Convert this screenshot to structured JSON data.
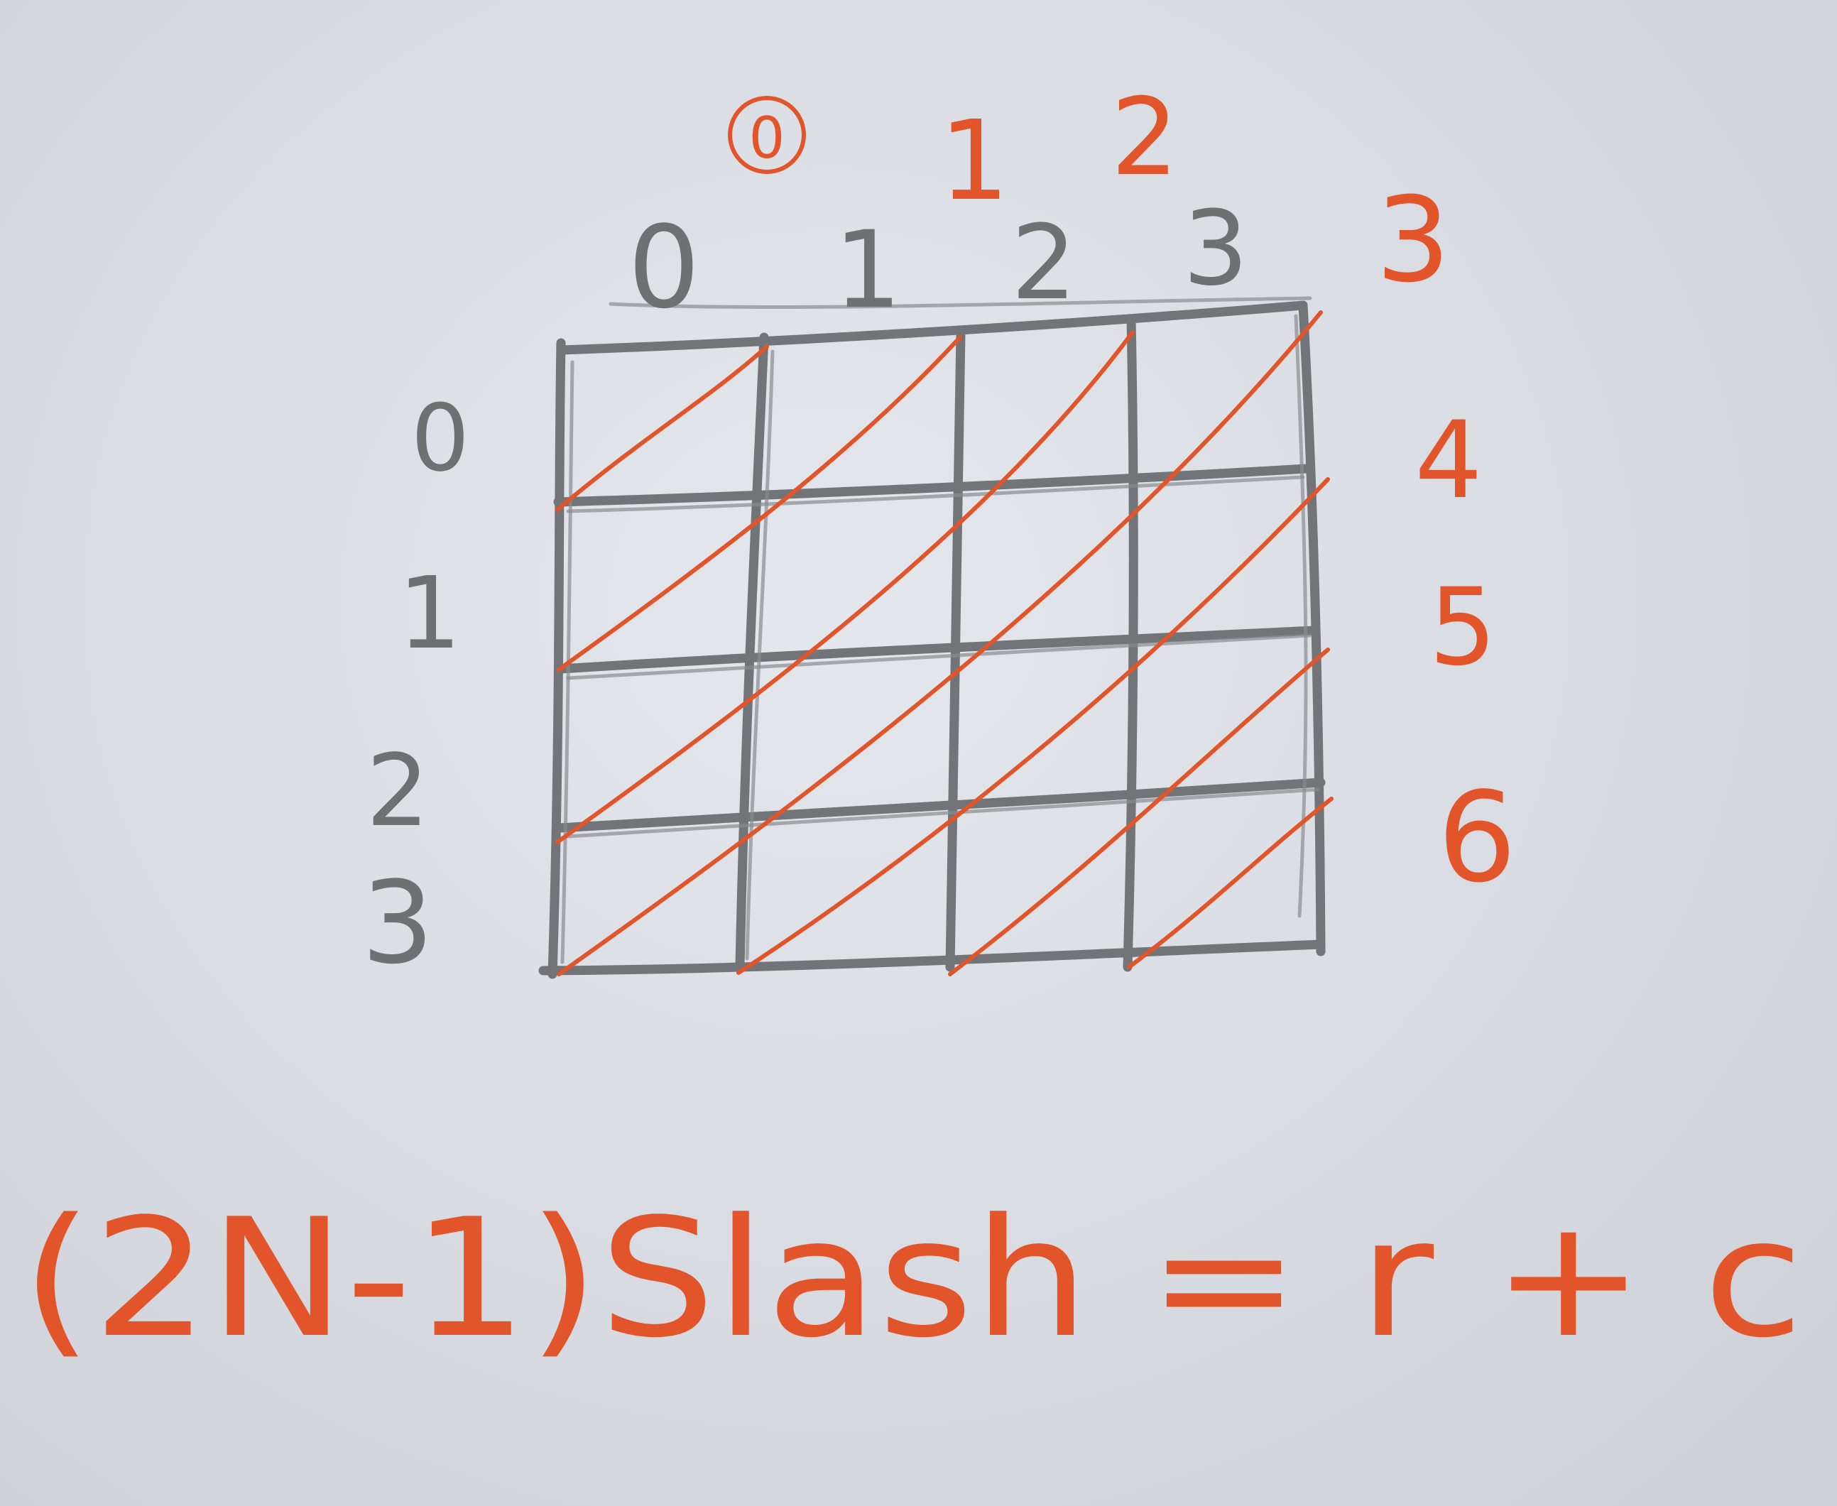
{
  "grid": {
    "rows": 4,
    "cols": 4
  },
  "column_labels": [
    "0",
    "1",
    "2",
    "3"
  ],
  "row_labels": [
    "0",
    "1",
    "2",
    "3"
  ],
  "slash_labels": [
    "0",
    "1",
    "2",
    "3",
    "4",
    "5",
    "6"
  ],
  "formula": "(2N-1)Slash = r + c",
  "colors": {
    "pencil": "#727477",
    "ink": "#e2552b",
    "paper": "#dfe2e7"
  }
}
